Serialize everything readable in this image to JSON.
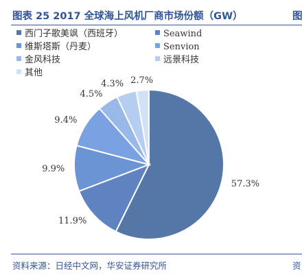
{
  "header": {
    "title": "图表 25 2017 全球海上风机厂商市场份额（GW）",
    "title_cut": "图"
  },
  "footer": {
    "source": "资料来源：日经中文网，华安证券研究所",
    "source_cut": "资"
  },
  "chart_data": {
    "type": "pie",
    "title": "图表 25 2017 全球海上风机厂商市场份额（GW）",
    "start_angle_deg": 0,
    "direction": "clockwise",
    "legend_position": "top-left",
    "slices": [
      {
        "name": "西门子歌美飒（西班牙）",
        "value": 57.3,
        "label": "57.3%",
        "color": "#5577a7"
      },
      {
        "name": "Seawind",
        "value": 11.9,
        "label": "11.9%",
        "color": "#5f83c0"
      },
      {
        "name": "维斯塔斯（丹麦）",
        "value": 9.9,
        "label": "9.9%",
        "color": "#6b94d5"
      },
      {
        "name": "Senvion",
        "value": 9.4,
        "label": "9.4%",
        "color": "#7aa2e0"
      },
      {
        "name": "金风科技",
        "value": 4.5,
        "label": "4.5%",
        "color": "#98b9e8"
      },
      {
        "name": "远景科技",
        "value": 4.3,
        "label": "4.3%",
        "color": "#b5cdf0"
      },
      {
        "name": "其他",
        "value": 2.7,
        "label": "2.7%",
        "color": "#d3e1f5"
      }
    ]
  }
}
